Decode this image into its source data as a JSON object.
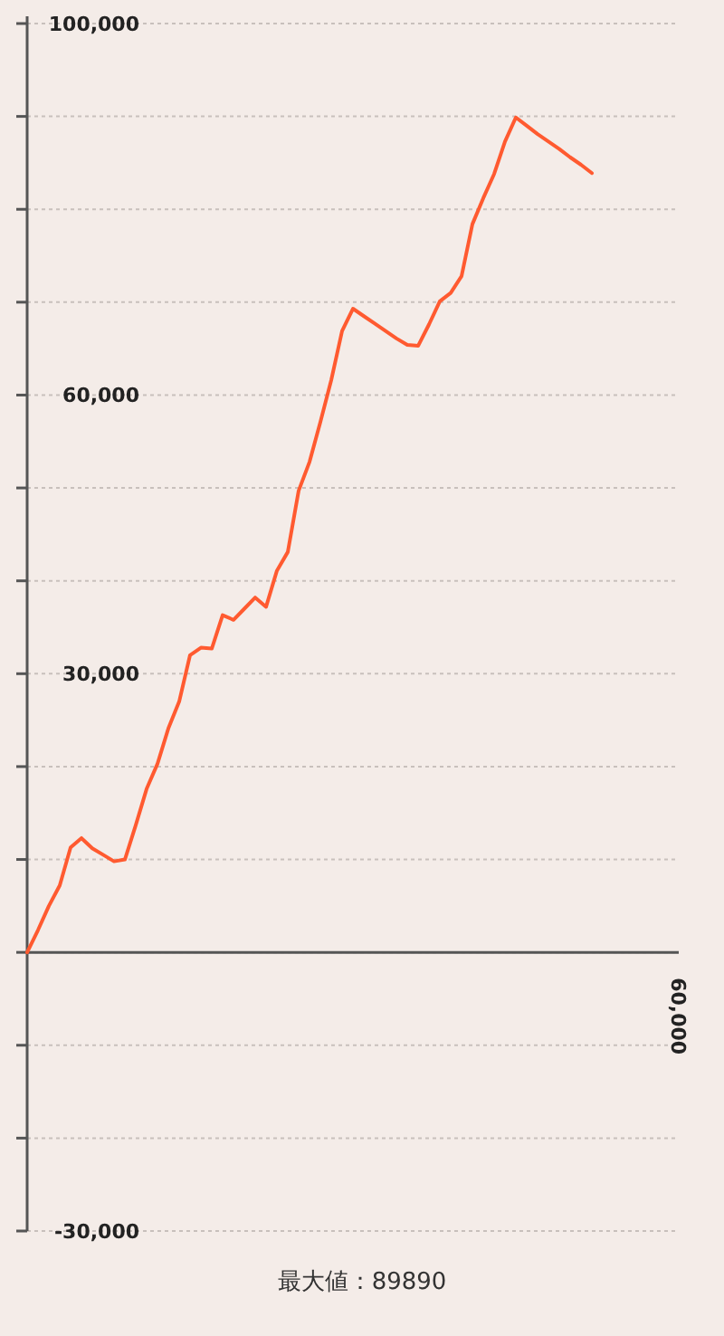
{
  "chart_data": {
    "type": "line",
    "categories": [
      null,
      null,
      null,
      null,
      null,
      null,
      null,
      null,
      null,
      null,
      null,
      null,
      null,
      null,
      null,
      null,
      null,
      null,
      null,
      null,
      null,
      null,
      null,
      null,
      null,
      null,
      null,
      null,
      null,
      null,
      null,
      null,
      null,
      null,
      null,
      null,
      null,
      null,
      null,
      null,
      null,
      null,
      null,
      null,
      null,
      null,
      null,
      null,
      null,
      null,
      null,
      null,
      null,
      null,
      null,
      null,
      null,
      null,
      null,
      null,
      null
    ],
    "series": [
      {
        "color": "#ff5a30",
        "values": [
          0,
          2400,
          5000,
          7200,
          11300,
          12300,
          11200,
          10500,
          9800,
          10000,
          13700,
          17600,
          20300,
          24100,
          27000,
          32000,
          32800,
          32700,
          36300,
          35800,
          37000,
          38200,
          37200,
          41100,
          43100,
          49700,
          52800,
          57100,
          61600,
          66900,
          69300,
          68500,
          67700,
          66900,
          66100,
          65400,
          65300,
          67600,
          70100,
          71000,
          72800,
          78400,
          81200,
          83800,
          87300,
          89890,
          89000,
          88100,
          87300,
          86500,
          85600,
          84800,
          83900,
          null,
          null,
          null,
          null,
          null,
          null,
          null,
          null
        ]
      }
    ],
    "ylim": [
      -30000,
      100000
    ],
    "yticks": [
      {
        "value": -30000,
        "label": "-30,000"
      },
      {
        "value": -20000,
        "label": null
      },
      {
        "value": -10000,
        "label": null
      },
      {
        "value": 0,
        "label": null
      },
      {
        "value": 10000,
        "label": null
      },
      {
        "value": 20000,
        "label": null
      },
      {
        "value": 30000,
        "label": "30,000"
      },
      {
        "value": 40000,
        "label": null
      },
      {
        "value": 50000,
        "label": null
      },
      {
        "value": 60000,
        "label": "60,000"
      },
      {
        "value": 70000,
        "label": null
      },
      {
        "value": 80000,
        "label": null
      },
      {
        "value": 90000,
        "label": null
      },
      {
        "value": 100000,
        "label": "100,000"
      }
    ],
    "grid": "y",
    "marker": "none",
    "line_style": "solid",
    "annotations": [
      "60,000",
      "最大値：89890"
    ]
  }
}
